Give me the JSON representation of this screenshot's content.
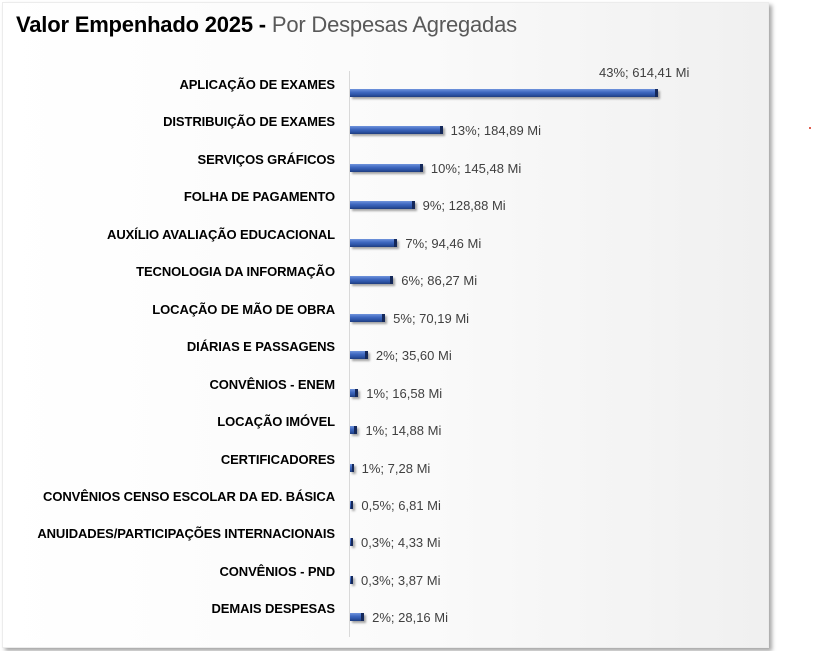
{
  "chart_data": {
    "type": "bar",
    "orientation": "horizontal",
    "title": "Valor Empenhado  2025 -",
    "subtitle": "Por Despesas Agregadas",
    "xlabel": "",
    "ylabel": "",
    "grid": false,
    "legend": null,
    "unit": "Mi",
    "categories": [
      "APLICAÇÃO DE EXAMES",
      "DISTRIBUIÇÃO DE EXAMES",
      "SERVIÇOS GRÁFICOS",
      "FOLHA DE PAGAMENTO",
      "AUXÍLIO AVALIAÇÃO EDUCACIONAL",
      "TECNOLOGIA DA INFORMAÇÃO",
      "LOCAÇÃO DE MÃO DE OBRA",
      "DIÁRIAS E PASSAGENS",
      "CONVÊNIOS - ENEM",
      "LOCAÇÃO IMÓVEL",
      "CERTIFICADORES",
      "CONVÊNIOS  CENSO ESCOLAR DA ED. BÁSICA",
      "ANUIDADES/PARTICIPAÇÕES INTERNACIONAIS",
      "CONVÊNIOS - PND",
      "DEMAIS DESPESAS"
    ],
    "values": [
      614.41,
      184.89,
      145.48,
      128.88,
      94.46,
      86.27,
      70.19,
      35.6,
      16.58,
      14.88,
      7.28,
      6.81,
      4.33,
      3.87,
      28.16
    ],
    "percentages": [
      "43%",
      "13%",
      "10%",
      "9%",
      "7%",
      "6%",
      "5%",
      "2%",
      "1%",
      "1%",
      "1%",
      "0,5%",
      "0,3%",
      "0,3%",
      "2%"
    ],
    "data_labels": [
      "43%; 614,41 Mi",
      "13%; 184,89 Mi",
      "10%; 145,48 Mi",
      "9%;  128,88 Mi",
      "7%;  94,46 Mi",
      "6%;  86,27 Mi",
      "5%;  70,19 Mi",
      "2%;  35,60 Mi",
      "1%;  16,58 Mi",
      "1%;  14,88 Mi",
      "1%;  7,28 Mi",
      "0,5%;  6,81 Mi",
      "0,3%;  4,33 Mi",
      "0,3%;  3,87 Mi",
      "2%;  28,16 Mi"
    ],
    "xlim": [
      0,
      614.41
    ],
    "colors": {
      "bar": "#3a62b8",
      "bar_end": "#14285a",
      "label": "#404040"
    }
  }
}
